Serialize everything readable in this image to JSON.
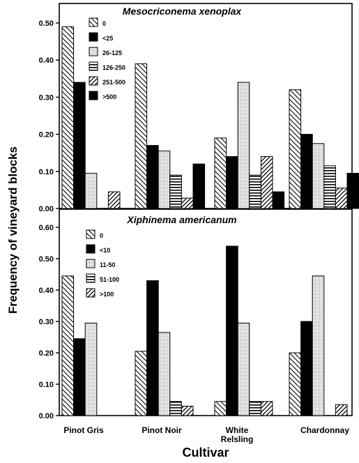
{
  "figure": {
    "ylabel": "Frequency of vineyard blocks",
    "xlabel": "Cultivar"
  },
  "chart_data": [
    {
      "type": "bar",
      "title": "Mesocriconema xenoplax",
      "categories": [
        "Pinot Gris",
        "Pinot Noir",
        "White Relsling",
        "Chardonnay"
      ],
      "ylim": [
        0,
        0.5
      ],
      "yticks": [
        "0.00",
        "0.10",
        "0.20",
        "0.30",
        "0.40",
        "0.50"
      ],
      "legend_position": "top-left",
      "series": [
        {
          "name": "0",
          "pattern": "diag-back",
          "values": [
            0.49,
            0.39,
            0.19,
            0.32
          ]
        },
        {
          "name": "<25",
          "pattern": "solid",
          "values": [
            0.34,
            0.17,
            0.14,
            0.2
          ]
        },
        {
          "name": "26-125",
          "pattern": "dots",
          "values": [
            0.095,
            0.155,
            0.34,
            0.175
          ]
        },
        {
          "name": "126-250",
          "pattern": "horiz",
          "values": [
            0,
            0.09,
            0.09,
            0.115
          ]
        },
        {
          "name": "251-500",
          "pattern": "diag-fwd",
          "values": [
            0.045,
            0.028,
            0.14,
            0.055
          ]
        },
        {
          "name": ">500",
          "pattern": "solid",
          "values": [
            0,
            0.12,
            0.045,
            0.095
          ]
        }
      ]
    },
    {
      "type": "bar",
      "title": "Xiphinema americanum",
      "categories": [
        "Pinot Gris",
        "Pinot Noir",
        "White Relsling",
        "Chardonnay"
      ],
      "ylim": [
        0,
        0.6
      ],
      "yticks": [
        "0.00",
        "0.10",
        "0.20",
        "0.30",
        "0.40",
        "0.50",
        "0.60"
      ],
      "legend_position": "top-left",
      "series": [
        {
          "name": "0",
          "pattern": "diag-back",
          "values": [
            0.445,
            0.205,
            0.045,
            0.2
          ]
        },
        {
          "name": "<10",
          "pattern": "solid",
          "values": [
            0.245,
            0.43,
            0.54,
            0.3
          ]
        },
        {
          "name": "11-50",
          "pattern": "dots",
          "values": [
            0.295,
            0.265,
            0.295,
            0.445
          ]
        },
        {
          "name": "51-100",
          "pattern": "horiz",
          "values": [
            0,
            0.045,
            0.045,
            0
          ]
        },
        {
          "name": ">100",
          "pattern": "diag-fwd",
          "values": [
            0,
            0.03,
            0.045,
            0.035
          ]
        }
      ]
    }
  ]
}
